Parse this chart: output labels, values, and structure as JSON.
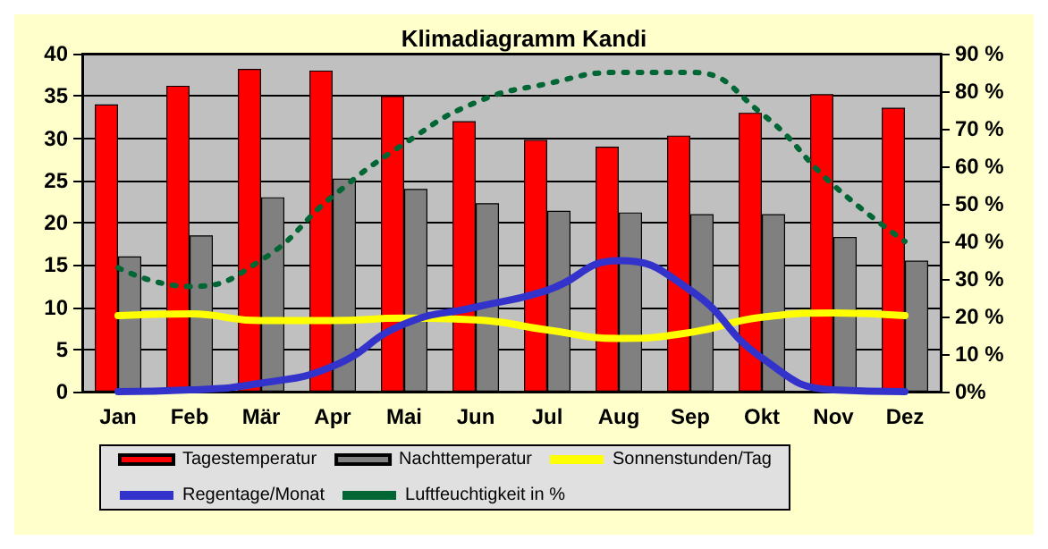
{
  "chart_data": {
    "type": "bar",
    "title": "Klimadiagramm Kandi",
    "categories": [
      "Jan",
      "Feb",
      "Mär",
      "Apr",
      "Mai",
      "Jun",
      "Jul",
      "Aug",
      "Sep",
      "Okt",
      "Nov",
      "Dez"
    ],
    "series": [
      {
        "name": "Tagestemperatur",
        "color": "#ff0000",
        "values": [
          34,
          36.2,
          38.2,
          38,
          35,
          32,
          29.8,
          29,
          30.3,
          33,
          35.2,
          33.6
        ]
      },
      {
        "name": "Nachttemperatur",
        "color": "#808080",
        "values": [
          16,
          18.5,
          23,
          25.2,
          24,
          22.3,
          21.4,
          21.2,
          21,
          21,
          18.3,
          15.5
        ]
      },
      {
        "name": "Sonnenstunden/Tag",
        "type": "line",
        "color": "#ffff00",
        "line_style": "solid",
        "values": [
          9,
          9.2,
          8.4,
          8.4,
          8.7,
          8.5,
          7.3,
          6.3,
          7,
          8.8,
          9.3,
          9
        ]
      },
      {
        "name": "Regentage/Monat",
        "type": "line",
        "color": "#3333cc",
        "line_style": "solid",
        "values": [
          0,
          0.2,
          1,
          3,
          8,
          10,
          12,
          15.5,
          12,
          4,
          0.2,
          0
        ]
      },
      {
        "name": "Luftfeuchtigkeit in %",
        "type": "line",
        "axis": "y2",
        "color": "#006633",
        "line_style": "dotted",
        "values": [
          33,
          28,
          35,
          52,
          66,
          77,
          82,
          85,
          85,
          74,
          55,
          40
        ]
      }
    ],
    "ylim": [
      0,
      40
    ],
    "yticks": [
      0,
      5,
      10,
      15,
      20,
      25,
      30,
      35,
      40
    ],
    "y2lim": [
      0,
      90
    ],
    "y2ticks": [
      {
        "value": 0,
        "label": "0%"
      },
      {
        "value": 10,
        "label": "10 %"
      },
      {
        "value": 20,
        "label": "20 %"
      },
      {
        "value": 30,
        "label": "30 %"
      },
      {
        "value": 40,
        "label": "40 %"
      },
      {
        "value": 50,
        "label": "50 %"
      },
      {
        "value": 60,
        "label": "60 %"
      },
      {
        "value": 70,
        "label": "70 %"
      },
      {
        "value": 80,
        "label": "80 %"
      },
      {
        "value": 90,
        "label": "90 %"
      }
    ],
    "grid": "y",
    "legend": "bottom",
    "marker": "none"
  }
}
